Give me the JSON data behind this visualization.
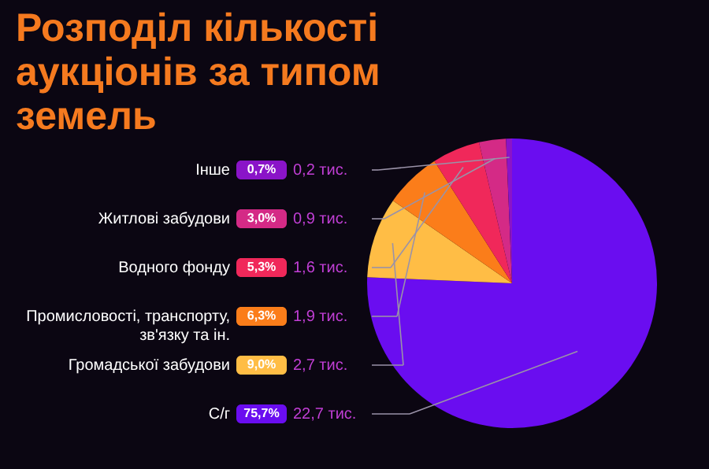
{
  "chart_data": {
    "type": "pie",
    "title": "Розподіл кількості аукціонів за типом земель",
    "categories": [
      "С/г",
      "Громадської забудови",
      "Промисловості, транспорту, зв'язку та ін.",
      "Водного фонду",
      "Житлові забудови",
      "Інше"
    ],
    "values": [
      22.7,
      2.7,
      1.9,
      1.6,
      0.9,
      0.2
    ],
    "colors": [
      "#6a0df0",
      "#ffbd45",
      "#fb7d1a",
      "#f0285a",
      "#d42a86",
      "#8a14c8"
    ],
    "value_labels": [
      "22,7 тис.",
      "2,7 тис.",
      "1,9 тис.",
      "1,6 тис.",
      "0,9 тис.",
      "0,2 тис."
    ],
    "annotations": [
      {
        "text": "75,7%",
        "x": "С/г"
      },
      {
        "text": "9,0%",
        "x": "Громадської забудови"
      },
      {
        "text": "6,3%",
        "x": "Промисловості, транспорту, зв'язку та ін."
      },
      {
        "text": "5,3%",
        "x": "Водного фонду"
      },
      {
        "text": "3,0%",
        "x": "Житлові забудови"
      },
      {
        "text": "0,7%",
        "x": "Інше"
      }
    ],
    "data_labels": true,
    "legend": "left"
  }
}
